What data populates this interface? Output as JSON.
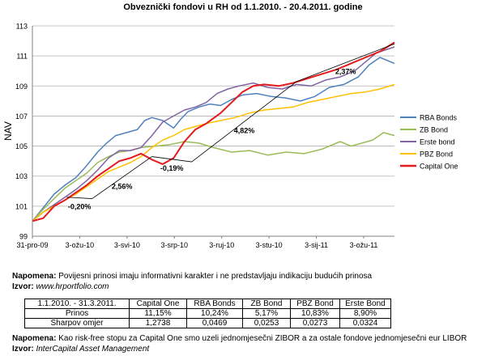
{
  "chart_data": {
    "type": "line",
    "title": "Obveznički fondovi u RH od 1.1.2010. - 20.4.2011. godine",
    "ylabel": "NAV",
    "xlabel": "",
    "ylim": [
      99,
      113
    ],
    "yticks": [
      "99",
      "101",
      "103",
      "105",
      "107",
      "109",
      "111",
      "113"
    ],
    "xticks": [
      "31-pro-09",
      "3-ožu-10",
      "3-svi-10",
      "3-srp-10",
      "3-ruj-10",
      "3-stu-10",
      "3-sij-11",
      "3-ožu-11"
    ],
    "grid": "horizontal",
    "legend_position": "right",
    "series": [
      {
        "name": "RBA Bonds",
        "color": "#4f81bd",
        "points": [
          [
            0,
            100
          ],
          [
            0.03,
            100.9
          ],
          [
            0.06,
            101.8
          ],
          [
            0.09,
            102.4
          ],
          [
            0.12,
            102.9
          ],
          [
            0.15,
            103.7
          ],
          [
            0.18,
            104.6
          ],
          [
            0.205,
            105.2
          ],
          [
            0.23,
            105.7
          ],
          [
            0.26,
            105.9
          ],
          [
            0.29,
            106.1
          ],
          [
            0.31,
            106.7
          ],
          [
            0.33,
            106.9
          ],
          [
            0.36,
            106.7
          ],
          [
            0.39,
            106.2
          ],
          [
            0.41,
            106.8
          ],
          [
            0.43,
            107.3
          ],
          [
            0.46,
            107.6
          ],
          [
            0.49,
            107.8
          ],
          [
            0.52,
            107.7
          ],
          [
            0.55,
            108.1
          ],
          [
            0.58,
            108.4
          ],
          [
            0.62,
            108.5
          ],
          [
            0.66,
            108.3
          ],
          [
            0.7,
            108.2
          ],
          [
            0.74,
            108.0
          ],
          [
            0.78,
            108.3
          ],
          [
            0.82,
            108.9
          ],
          [
            0.86,
            109.1
          ],
          [
            0.9,
            109.6
          ],
          [
            0.93,
            110.4
          ],
          [
            0.96,
            110.9
          ],
          [
            1.0,
            110.5
          ]
        ]
      },
      {
        "name": "ZB Bond",
        "color": "#9bbb59",
        "points": [
          [
            0,
            100
          ],
          [
            0.03,
            100.8
          ],
          [
            0.06,
            101.5
          ],
          [
            0.09,
            102.2
          ],
          [
            0.12,
            102.7
          ],
          [
            0.15,
            103.2
          ],
          [
            0.18,
            103.9
          ],
          [
            0.21,
            104.3
          ],
          [
            0.24,
            104.6
          ],
          [
            0.27,
            104.7
          ],
          [
            0.3,
            104.9
          ],
          [
            0.34,
            105.0
          ],
          [
            0.38,
            105.1
          ],
          [
            0.42,
            105.3
          ],
          [
            0.46,
            105.2
          ],
          [
            0.5,
            104.9
          ],
          [
            0.55,
            104.6
          ],
          [
            0.6,
            104.7
          ],
          [
            0.65,
            104.4
          ],
          [
            0.7,
            104.6
          ],
          [
            0.75,
            104.5
          ],
          [
            0.8,
            104.8
          ],
          [
            0.85,
            105.3
          ],
          [
            0.88,
            105.0
          ],
          [
            0.91,
            105.2
          ],
          [
            0.94,
            105.4
          ],
          [
            0.97,
            105.9
          ],
          [
            1.0,
            105.7
          ]
        ]
      },
      {
        "name": "Erste bond",
        "color": "#8064a2",
        "points": [
          [
            0,
            100
          ],
          [
            0.03,
            100.6
          ],
          [
            0.06,
            101.1
          ],
          [
            0.09,
            101.6
          ],
          [
            0.12,
            102.1
          ],
          [
            0.15,
            102.7
          ],
          [
            0.18,
            103.4
          ],
          [
            0.21,
            104.2
          ],
          [
            0.24,
            104.7
          ],
          [
            0.27,
            104.7
          ],
          [
            0.3,
            104.9
          ],
          [
            0.33,
            105.7
          ],
          [
            0.36,
            106.6
          ],
          [
            0.39,
            107.0
          ],
          [
            0.42,
            107.4
          ],
          [
            0.45,
            107.6
          ],
          [
            0.48,
            107.9
          ],
          [
            0.51,
            108.5
          ],
          [
            0.54,
            108.8
          ],
          [
            0.57,
            109.0
          ],
          [
            0.61,
            109.2
          ],
          [
            0.65,
            108.9
          ],
          [
            0.69,
            108.8
          ],
          [
            0.73,
            109.1
          ],
          [
            0.77,
            109.0
          ],
          [
            0.81,
            109.4
          ],
          [
            0.85,
            109.6
          ],
          [
            0.89,
            110.0
          ],
          [
            0.92,
            110.6
          ],
          [
            0.95,
            111.2
          ],
          [
            1.0,
            111.6
          ]
        ]
      },
      {
        "name": "PBZ Bond",
        "color": "#ffc000",
        "points": [
          [
            0,
            100
          ],
          [
            0.03,
            100.6
          ],
          [
            0.06,
            101.0
          ],
          [
            0.09,
            101.4
          ],
          [
            0.12,
            101.8
          ],
          [
            0.15,
            102.3
          ],
          [
            0.18,
            102.8
          ],
          [
            0.21,
            103.3
          ],
          [
            0.24,
            103.6
          ],
          [
            0.27,
            103.9
          ],
          [
            0.3,
            104.3
          ],
          [
            0.33,
            104.9
          ],
          [
            0.36,
            105.4
          ],
          [
            0.39,
            105.7
          ],
          [
            0.42,
            106.1
          ],
          [
            0.45,
            106.3
          ],
          [
            0.48,
            106.5
          ],
          [
            0.52,
            106.7
          ],
          [
            0.56,
            106.9
          ],
          [
            0.6,
            107.2
          ],
          [
            0.64,
            107.4
          ],
          [
            0.68,
            107.5
          ],
          [
            0.72,
            107.6
          ],
          [
            0.76,
            107.9
          ],
          [
            0.8,
            108.1
          ],
          [
            0.84,
            108.3
          ],
          [
            0.88,
            108.5
          ],
          [
            0.92,
            108.6
          ],
          [
            0.96,
            108.8
          ],
          [
            1.0,
            109.1
          ]
        ]
      },
      {
        "name": "Capital One",
        "color": "#e41a1c",
        "points": [
          [
            0,
            100
          ],
          [
            0.03,
            100.2
          ],
          [
            0.06,
            101.0
          ],
          [
            0.09,
            101.4
          ],
          [
            0.12,
            101.9
          ],
          [
            0.15,
            102.4
          ],
          [
            0.18,
            103.0
          ],
          [
            0.21,
            103.5
          ],
          [
            0.24,
            104.0
          ],
          [
            0.27,
            104.2
          ],
          [
            0.3,
            104.5
          ],
          [
            0.33,
            104.1
          ],
          [
            0.36,
            103.8
          ],
          [
            0.39,
            104.2
          ],
          [
            0.42,
            105.3
          ],
          [
            0.45,
            106.1
          ],
          [
            0.48,
            106.5
          ],
          [
            0.52,
            107.2
          ],
          [
            0.55,
            107.9
          ],
          [
            0.58,
            108.6
          ],
          [
            0.61,
            109.0
          ],
          [
            0.64,
            109.1
          ],
          [
            0.68,
            109.0
          ],
          [
            0.72,
            109.2
          ],
          [
            0.76,
            109.5
          ],
          [
            0.8,
            109.8
          ],
          [
            0.84,
            110.1
          ],
          [
            0.88,
            110.5
          ],
          [
            0.92,
            110.9
          ],
          [
            0.96,
            111.3
          ],
          [
            1.0,
            111.9
          ]
        ]
      }
    ],
    "annotations": [
      {
        "label": "-0,20%",
        "from": [
          0.095,
          101.6
        ],
        "to": [
          0.165,
          101.5
        ]
      },
      {
        "label": "2,56%",
        "from": [
          0.165,
          101.5
        ],
        "to": [
          0.33,
          104.3
        ]
      },
      {
        "label": "-0,19%",
        "from": [
          0.33,
          104.3
        ],
        "to": [
          0.44,
          103.95
        ]
      },
      {
        "label": "4,82%",
        "from": [
          0.44,
          103.95
        ],
        "to": [
          0.73,
          109.3
        ]
      },
      {
        "label": "2,37%",
        "from": [
          0.73,
          109.3
        ],
        "to": [
          1.0,
          111.8
        ]
      }
    ]
  },
  "note1": {
    "label": "Napomena:",
    "text": " Povijesni prinosi imaju informativni karakter i ne predstavljaju indikaciju budućih prinosa"
  },
  "source1": {
    "label": "Izvor:",
    "text": " www.hrportfolio.com"
  },
  "table": {
    "headers": [
      "1.1.2010. - 31.3.2011.",
      "Capital One",
      "RBA Bonds",
      "ZB Bond",
      "PBZ Bond",
      "Erste Bond"
    ],
    "rows": [
      [
        "Prinos",
        "11,15%",
        "10,24%",
        "5,17%",
        "10,83%",
        "8,90%"
      ],
      [
        "Sharpov omjer",
        "1,2738",
        "0,0469",
        "0,0253",
        "0,0273",
        "0,0324"
      ]
    ]
  },
  "note2": {
    "label": "Napomena:",
    "text": " Kao risk-free stopu za Capital One smo uzeli jednomjesečni ZIBOR a za ostale fondove jednomjesečni eur LIBOR"
  },
  "source2": {
    "label": "Izvor:",
    "text": " InterCapital Asset Management"
  }
}
